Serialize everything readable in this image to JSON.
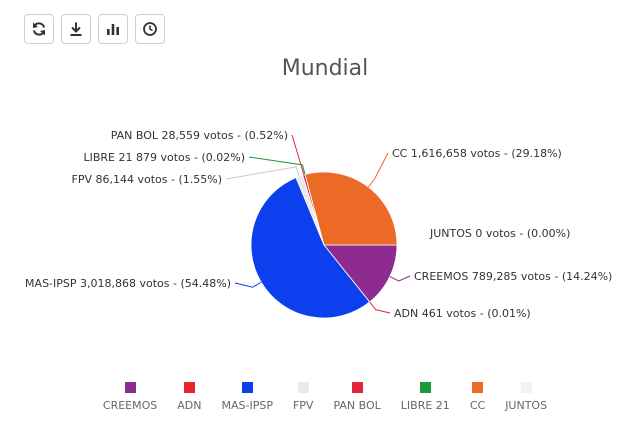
{
  "toolbar": {
    "buttons": [
      {
        "name": "refresh-button",
        "icon": "refresh-icon"
      },
      {
        "name": "download-button",
        "icon": "download-icon"
      },
      {
        "name": "chart-type-button",
        "icon": "bar-chart-icon"
      },
      {
        "name": "history-button",
        "icon": "clock-icon"
      }
    ]
  },
  "chart_data": {
    "type": "pie",
    "title": "Mundial",
    "unit": "votos",
    "legend_position": "bottom",
    "slices": [
      {
        "name": "CREEMOS",
        "value": 789285,
        "value_label": "789,285",
        "percent": 14.24,
        "color": "#8e2b91",
        "label": "CREEMOS 789,285 votos - (14.24%)"
      },
      {
        "name": "ADN",
        "value": 461,
        "value_label": "461",
        "percent": 0.01,
        "color": "#e8222e",
        "label": "ADN 461 votos - (0.01%)"
      },
      {
        "name": "MAS-IPSP",
        "value": 3018868,
        "value_label": "3,018,868",
        "percent": 54.48,
        "color": "#0c3fee",
        "label": "MAS-IPSP 3,018,868 votos - (54.48%)"
      },
      {
        "name": "FPV",
        "value": 86144,
        "value_label": "86,144",
        "percent": 1.55,
        "color": "#e9e9e9",
        "label": "FPV 86,144 votos - (1.55%)"
      },
      {
        "name": "PAN BOL",
        "value": 28559,
        "value_label": "28,559",
        "percent": 0.52,
        "color": "#e0253d",
        "label": "PAN BOL 28,559 votos - (0.52%)"
      },
      {
        "name": "LIBRE 21",
        "value": 879,
        "value_label": "879",
        "percent": 0.02,
        "color": "#1a9a3c",
        "label": "LIBRE 21 879 votos - (0.02%)"
      },
      {
        "name": "CC",
        "value": 1616658,
        "value_label": "1,616,658",
        "percent": 29.18,
        "color": "#eb6a26",
        "label": "CC 1,616,658 votos - (29.18%)"
      },
      {
        "name": "JUNTOS",
        "value": 0,
        "value_label": "0",
        "percent": 0.0,
        "color": "#f2f2f2",
        "label": "JUNTOS 0 votos - (0.00%)"
      }
    ]
  }
}
